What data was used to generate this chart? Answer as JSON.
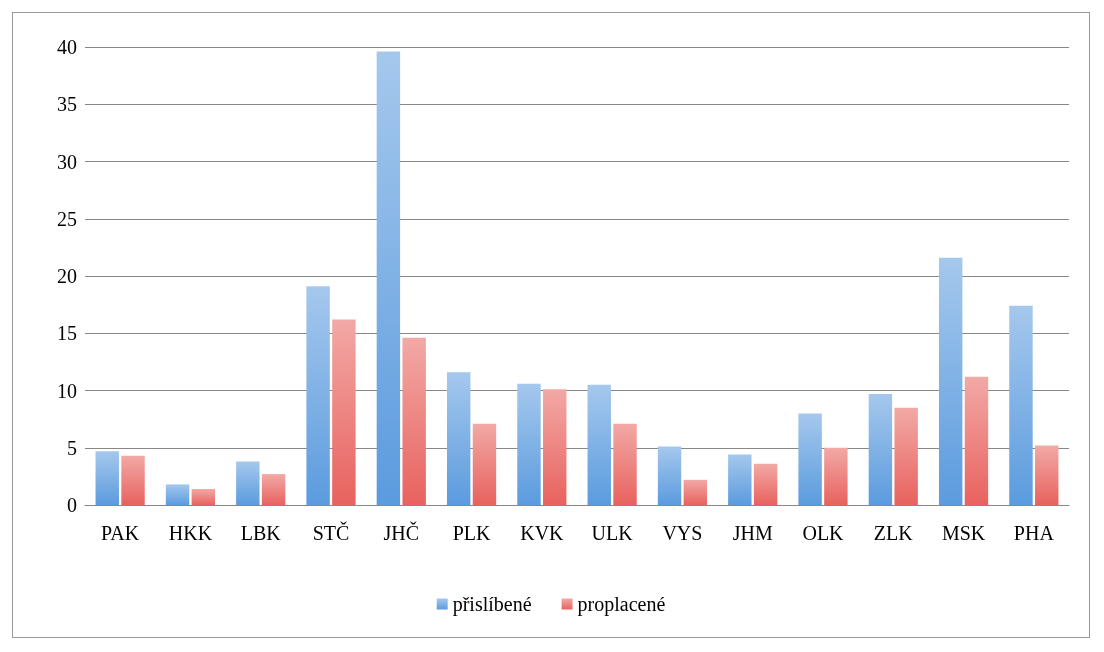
{
  "chart_data": {
    "type": "bar",
    "categories": [
      "PAK",
      "HKK",
      "LBK",
      "STČ",
      "JHČ",
      "PLK",
      "KVK",
      "ULK",
      "VYS",
      "JHM",
      "OLK",
      "ZLK",
      "MSK",
      "PHA"
    ],
    "series": [
      {
        "name": "přislíbené",
        "color": "#5b9bde",
        "values": [
          4.7,
          1.8,
          3.8,
          19.1,
          39.6,
          11.6,
          10.6,
          10.5,
          5.1,
          4.4,
          8.0,
          9.7,
          21.6,
          17.4
        ]
      },
      {
        "name": "proplacené",
        "color": "#e8625e",
        "values": [
          4.3,
          1.4,
          2.7,
          16.2,
          14.6,
          7.1,
          10.1,
          7.1,
          2.2,
          3.6,
          5.0,
          8.5,
          11.2,
          5.2
        ]
      }
    ],
    "ylim": [
      0,
      40
    ],
    "yticks": [
      0,
      5,
      10,
      15,
      20,
      25,
      30,
      35,
      40
    ],
    "grid": "y",
    "legend": "bottom"
  }
}
